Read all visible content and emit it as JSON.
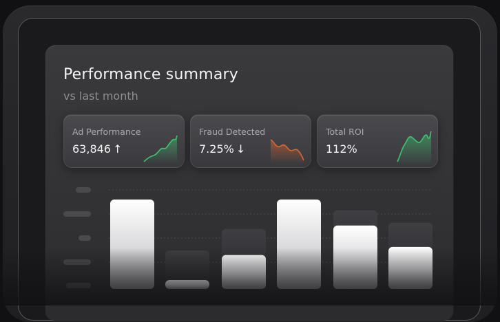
{
  "header": {
    "title": "Performance summary",
    "subtitle": "vs last month"
  },
  "metrics": [
    {
      "label": "Ad Performance",
      "value": "63,846",
      "trend": "up",
      "trend_glyph": "↑",
      "color": "#3ec46d"
    },
    {
      "label": "Fraud Detected",
      "value": "7.25%",
      "trend": "down",
      "trend_glyph": "↓",
      "color": "#e0652b"
    },
    {
      "label": "Total ROI",
      "value": "112%",
      "trend": "up",
      "trend_glyph": "",
      "color": "#3ec46d"
    }
  ],
  "chart_data": {
    "type": "bar",
    "categories": [
      "",
      "",
      "",
      "",
      "",
      ""
    ],
    "series": [
      {
        "values": [
          100,
          10,
          38,
          100,
          71,
          47
        ]
      },
      {
        "values": [
          100,
          43,
          67,
          100,
          88,
          74
        ]
      }
    ],
    "ylim": [
      0,
      100
    ],
    "grid": true,
    "colors": {
      "bar_fill": "#f5f5f7",
      "bar_ghost": "#3b3b3f",
      "axis_pill": "#4a4a4e"
    }
  }
}
